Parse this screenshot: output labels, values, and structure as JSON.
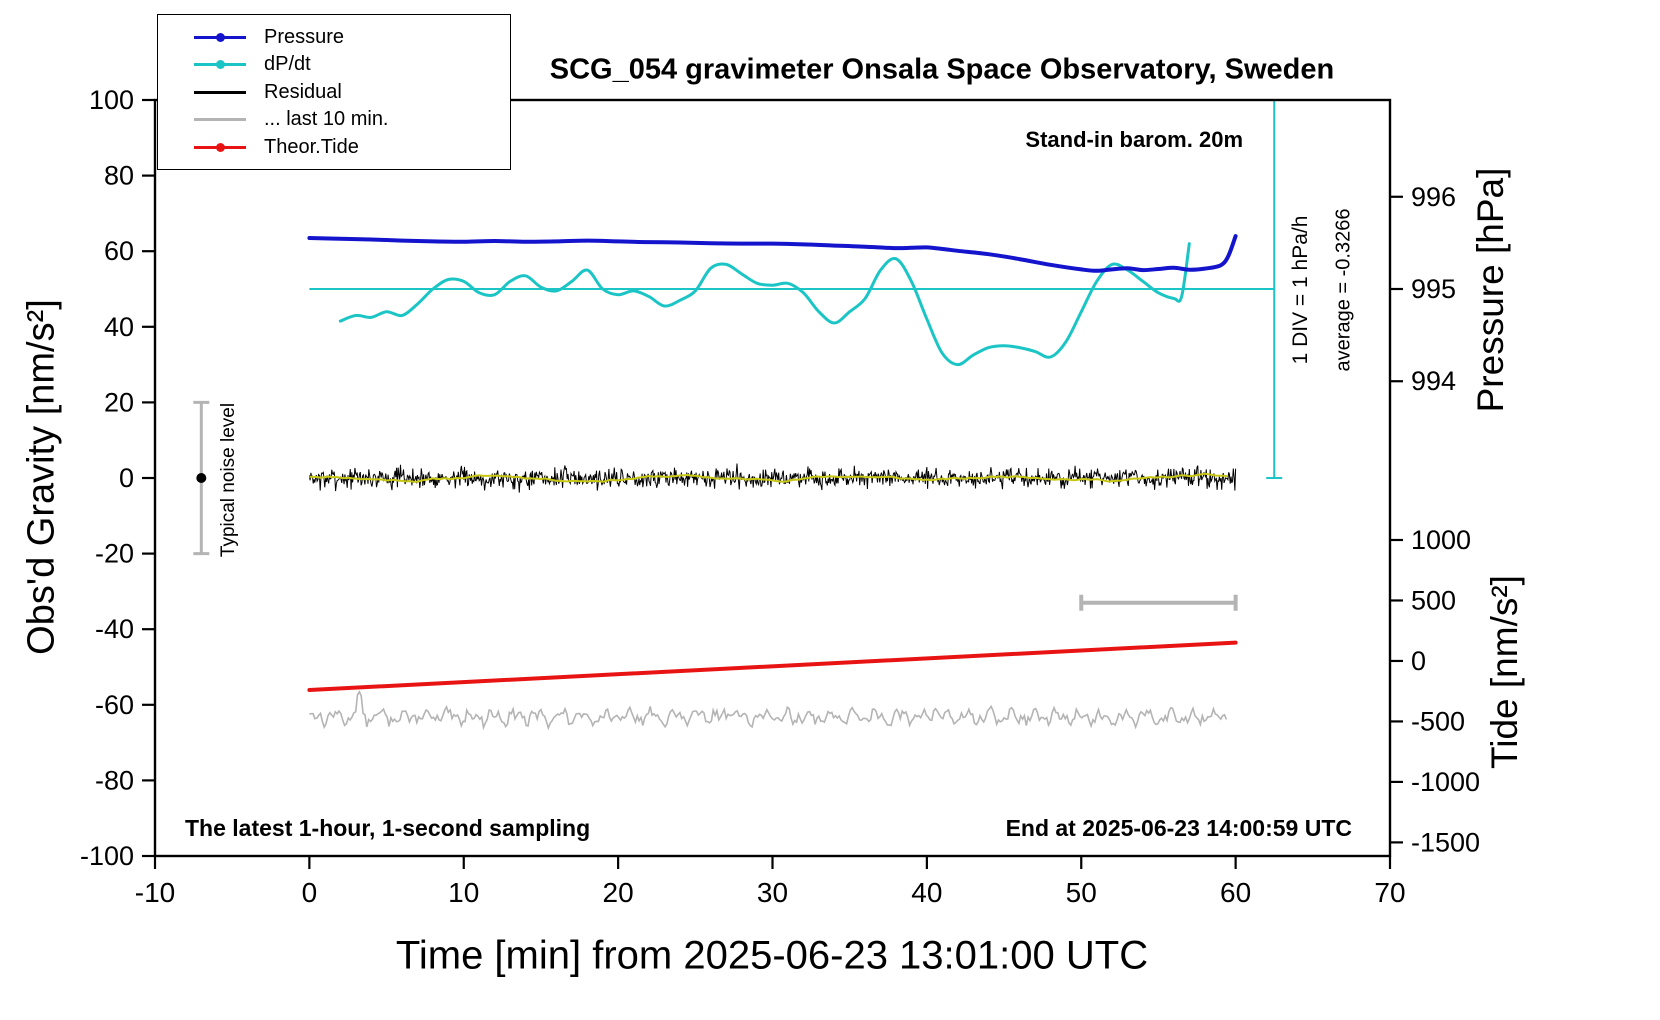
{
  "title": "SCG_054 gravimeter Onsala Space Observatory, Sweden",
  "annotations": {
    "barometer": "Stand-in barom. 20m",
    "div_scale": "1 DIV = 1 hPa/h",
    "average": "average = -0.3266",
    "noise_label": "Typical noise level",
    "sampling": "The latest 1-hour, 1-second sampling",
    "end_time": "End at 2025-06-23 14:00:59 UTC"
  },
  "axes": {
    "x": {
      "label": "Time [min] from 2025-06-23 13:01:00 UTC",
      "min": -10,
      "max": 70,
      "ticks": [
        -10,
        0,
        10,
        20,
        30,
        40,
        50,
        60,
        70
      ]
    },
    "y_left": {
      "label": "Obs'd Gravity [nm/s²]",
      "min": -100,
      "max": 100,
      "ticks": [
        -100,
        -80,
        -60,
        -40,
        -20,
        0,
        20,
        40,
        60,
        80,
        100
      ]
    },
    "y_right_pressure": {
      "label": "Pressure [hPa]",
      "unit": "hPa",
      "ticks": [
        996,
        995,
        994
      ],
      "zero_value": 995,
      "zero_gravity": 50,
      "gravity_per_unit": 24.4
    },
    "y_right_tide": {
      "label": "Tide [nm/s²]",
      "unit": "nm/s²",
      "ticks": [
        1000,
        500,
        0,
        -500,
        -1000,
        -1500
      ],
      "zero_gravity": -48.4,
      "gravity_per_unit": 0.032
    },
    "dpdt": {
      "unit": "hPa/h",
      "zero_gravity": 50,
      "gravity_per_unit": 20
    }
  },
  "legend": {
    "items": [
      {
        "label": "Pressure",
        "color": "#1414cd",
        "dot": true
      },
      {
        "label": "dP/dt",
        "color": "#1cc5c5",
        "dot": true
      },
      {
        "label": "Residual",
        "color": "#000000",
        "dot": false
      },
      {
        "label": "... last 10 min.",
        "color": "#b4b4b4",
        "dot": false
      },
      {
        "label": "Theor.Tide",
        "color": "#e81414",
        "dot": true
      }
    ]
  },
  "chart_data": {
    "type": "line",
    "x_unit": "minutes",
    "x_start_utc": "2025-06-23 13:01:00",
    "end_utc": "2025-06-23 14:00:59",
    "dpdt_average_hpa_per_h": -0.3266,
    "series": [
      {
        "name": "Pressure",
        "axis": "pressure",
        "unit": "hPa",
        "color": "#1414cd",
        "width": 4,
        "x": [
          0,
          2,
          4,
          6,
          8,
          10,
          12,
          14,
          16,
          18,
          20,
          22,
          24,
          26,
          28,
          30,
          32,
          34,
          36,
          38,
          39,
          40,
          41,
          42,
          44,
          46,
          48,
          50,
          51,
          52,
          53,
          54,
          55,
          56,
          57,
          58,
          59,
          59.5,
          60
        ],
        "values": [
          995.553,
          995.545,
          995.537,
          995.525,
          995.516,
          995.512,
          995.52,
          995.512,
          995.516,
          995.525,
          995.516,
          995.508,
          995.504,
          995.496,
          995.492,
          995.492,
          995.484,
          995.471,
          995.459,
          995.443,
          995.447,
          995.451,
          995.434,
          995.414,
          995.377,
          995.324,
          995.262,
          995.213,
          995.197,
          995.213,
          995.225,
          995.205,
          995.217,
          995.23,
          995.209,
          995.221,
          995.254,
          995.348,
          995.574
        ]
      },
      {
        "name": "dP/dt",
        "axis": "dpdt",
        "unit": "hPa/h",
        "color": "#1cc5c5",
        "width": 3,
        "x": [
          2,
          3,
          4,
          5,
          6,
          7,
          8,
          9,
          10,
          11,
          12,
          13,
          14,
          15,
          16,
          17,
          18,
          19,
          20,
          21,
          22,
          23,
          24,
          25,
          26,
          27,
          28,
          29,
          30,
          31,
          32,
          33,
          34,
          35,
          36,
          37,
          38,
          39,
          40,
          41,
          42,
          43,
          44,
          45,
          46,
          47,
          48,
          49,
          50,
          51,
          52,
          53,
          54,
          55,
          56,
          56.5,
          57
        ],
        "values": [
          -0.425,
          -0.35,
          -0.375,
          -0.3,
          -0.35,
          -0.2,
          0,
          0.125,
          0.1,
          -0.05,
          -0.075,
          0.1,
          0.175,
          0.025,
          -0.025,
          0.1,
          0.25,
          0,
          -0.075,
          -0.025,
          -0.1,
          -0.225,
          -0.15,
          -0.025,
          0.275,
          0.325,
          0.2,
          0.075,
          0.05,
          0.075,
          -0.05,
          -0.3,
          -0.45,
          -0.3,
          -0.125,
          0.25,
          0.4,
          0.1,
          -0.4,
          -0.85,
          -1.0,
          -0.875,
          -0.775,
          -0.75,
          -0.775,
          -0.825,
          -0.9,
          -0.7,
          -0.3,
          0.1,
          0.325,
          0.25,
          0.1,
          -0.05,
          -0.125,
          -0.1,
          0.6
        ]
      },
      {
        "name": "Theor.Tide",
        "axis": "tide",
        "unit": "nm/s²",
        "color": "#e81414",
        "width": 4,
        "x": [
          0,
          60
        ],
        "values": [
          -240,
          152
        ]
      }
    ],
    "generated": {
      "residual": {
        "name": "Residual",
        "axis": "gravity",
        "color": "#000000",
        "mean": 0,
        "sigma": 1.3,
        "spike_chance": 0.02,
        "seed": 7,
        "x_start": 0,
        "x_end": 60,
        "step": 0.05
      },
      "residual_smoothed": {
        "name": "Residual smoothed",
        "axis": "gravity",
        "color": "#c8c814",
        "mean": 0,
        "amplitude": 1.0,
        "seed": 11,
        "x_start": 0,
        "x_end": 59.5,
        "step": 0.25
      },
      "last10": {
        "name": "... last 10 min.",
        "axis": "gravity",
        "color": "#b4b4b4",
        "mean": -63.2,
        "amplitude": 2.2,
        "seed": 13,
        "x_start": 0,
        "x_end": 59.5,
        "step": 0.12,
        "bumps": [
          {
            "x": 3.2,
            "amp": 5.5,
            "w": 0.15
          },
          {
            "x": 27.2,
            "amp": 3.5,
            "w": 0.12
          },
          {
            "x": 40.5,
            "amp": 3.2,
            "w": 0.12
          }
        ]
      }
    },
    "reference_line": {
      "axis": "dpdt",
      "value": 0,
      "x_start": 0,
      "x_end": 62.5,
      "color": "#1cc5c5"
    },
    "div_indicator": {
      "x": 62.5,
      "gravity_top": 100,
      "gravity_bottom": 0,
      "color": "#1cc5c5"
    },
    "noise_level_marker": {
      "x": -7,
      "gravity_center": 0,
      "gravity_half_range": 20,
      "bar_color": "#b4b4b4",
      "dot_color": "#000000"
    },
    "interval_marker": {
      "x_start": 50,
      "x_end": 60,
      "gravity": -33,
      "color": "#b4b4b4"
    }
  }
}
